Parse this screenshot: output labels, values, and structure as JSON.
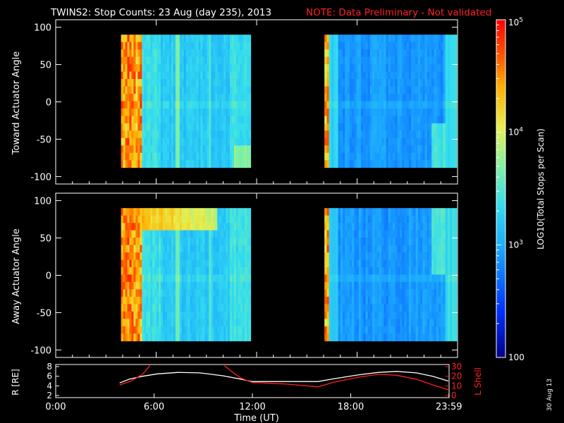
{
  "header": {
    "title": "TWINS2: Stop Counts: 23 Aug (day 235), 2013",
    "note": "NOTE: Data Preliminary - Not validated",
    "title_color": "#ffffff",
    "note_color": "#ff2020"
  },
  "side_stamp": "30 Aug 13",
  "chart_data": [
    {
      "type": "heatmap",
      "ylabel": "Toward Actuator Angle",
      "ylim": [
        -110,
        110
      ],
      "yticks": [
        "100",
        "50",
        "0",
        "-50",
        "-100"
      ],
      "data_extent": {
        "time_hours": [
          [
            3.9,
            11.65
          ],
          [
            16.05,
            23.95
          ]
        ],
        "angle_deg": [
          -88,
          90
        ]
      }
    },
    {
      "type": "heatmap",
      "ylabel": "Away Actuator Angle",
      "ylim": [
        -110,
        110
      ],
      "yticks": [
        "100",
        "50",
        "0",
        "-50",
        "-100"
      ],
      "data_extent": {
        "time_hours": [
          [
            3.9,
            11.65
          ],
          [
            16.05,
            23.95
          ]
        ],
        "angle_deg": [
          -88,
          90
        ]
      }
    },
    {
      "type": "line",
      "xlabel": "Time (UT)",
      "xlim": [
        0,
        24
      ],
      "xticks": [
        "0:00",
        "6:00",
        "12:00",
        "18:00",
        "23:59"
      ],
      "left_axis": {
        "label": "R [RE]",
        "ylim": [
          2,
          8
        ],
        "yticks": [
          "8",
          "6",
          "4",
          "2"
        ],
        "color": "#ffffff"
      },
      "right_axis": {
        "label": "L Shell",
        "ylim": [
          0,
          30
        ],
        "yticks": [
          "30",
          "20",
          "10",
          "0"
        ],
        "color": "#ff2020"
      },
      "series": [
        {
          "axis": "left",
          "color": "#ffffff",
          "x": [
            3.9,
            4.5,
            5.3,
            6.2,
            7.5,
            8.8,
            10.2,
            11.3,
            12.0,
            14.0,
            16.0,
            17.0,
            18.5,
            19.7,
            20.8,
            22.0,
            23.0,
            23.95
          ],
          "y": [
            4.6,
            5.4,
            6.0,
            6.5,
            6.8,
            6.7,
            6.1,
            5.4,
            4.9,
            4.9,
            4.9,
            5.5,
            6.3,
            6.8,
            7.0,
            6.7,
            6.0,
            5.0
          ]
        },
        {
          "axis": "right",
          "color": "#ff2020",
          "x": [
            3.9,
            4.6,
            5.3,
            5.75
          ],
          "y": [
            11,
            15,
            22,
            31
          ]
        },
        {
          "axis": "right",
          "color": "#ff2020",
          "x": [
            10.3,
            10.8,
            11.3,
            12.0,
            14.0,
            16.0,
            17.0,
            18.5,
            19.7,
            20.8,
            22.0,
            23.0,
            23.95
          ],
          "y": [
            31,
            24,
            18,
            13.5,
            12,
            9,
            14,
            19,
            22,
            21,
            17,
            11,
            6
          ]
        }
      ]
    }
  ],
  "colorbar": {
    "label": "LOG10(Total Stops per Scan)",
    "ticks": [
      "10^5",
      "10^4",
      "10^3",
      "100"
    ],
    "range": [
      100,
      100000
    ],
    "colors": [
      "#00008c",
      "#0033ff",
      "#1aa6ff",
      "#33ddee",
      "#7ef0a6",
      "#e6f050",
      "#ffb000",
      "#ff5000",
      "#ff0000"
    ]
  }
}
